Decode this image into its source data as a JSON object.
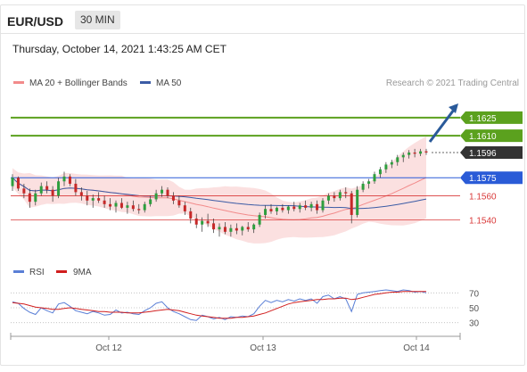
{
  "header": {
    "symbol": "EUR/USD",
    "timeframe": "30 MIN"
  },
  "timestamp": "Thursday, October 14, 2021 1:43:25 AM CET",
  "colors": {
    "up_candle": "#2e9e3e",
    "down_candle": "#c62828",
    "ma20": "#f28b8b",
    "bollinger_fill": "#f7c7c7",
    "ma50": "#3b5ba5",
    "resistance": "#5ba11e",
    "support": "#2a5bd7",
    "minor_level": "#d93a3a",
    "current_price": "#333333",
    "arrow": "#2a5a9a",
    "rsi": "#5a7fd6",
    "rsi_9ma": "#d11e1e"
  },
  "legend": {
    "ma20": "MA 20 + Bollinger Bands",
    "ma50": "MA 50",
    "credit": "Research © 2021 Trading Central"
  },
  "levels": [
    {
      "value": "1.1625",
      "type": "resistance"
    },
    {
      "value": "1.1610",
      "type": "resistance"
    },
    {
      "value": "1.1596",
      "type": "current"
    },
    {
      "value": "1.1575",
      "type": "pivot"
    },
    {
      "value": "1.1560",
      "type": "minor"
    },
    {
      "value": "1.1540",
      "type": "minor"
    }
  ],
  "indicator_legend": {
    "rsi": "RSI",
    "ma9": "9MA"
  },
  "rsi_ticks": [
    "70",
    "50",
    "30"
  ],
  "x_ticks": [
    "Oct 12",
    "Oct 13",
    "Oct 14"
  ],
  "chart_data": {
    "type": "candlestick",
    "price_range": [
      1.1515,
      1.1645
    ],
    "ohlc": [
      [
        1.1568,
        1.1578,
        1.1564,
        1.1575
      ],
      [
        1.1575,
        1.1576,
        1.1564,
        1.1566
      ],
      [
        1.1566,
        1.157,
        1.1558,
        1.1562
      ],
      [
        1.1562,
        1.1566,
        1.155,
        1.1555
      ],
      [
        1.1555,
        1.1565,
        1.1552,
        1.1562
      ],
      [
        1.1562,
        1.1571,
        1.156,
        1.1568
      ],
      [
        1.1568,
        1.1572,
        1.1562,
        1.1565
      ],
      [
        1.1565,
        1.1568,
        1.1555,
        1.156
      ],
      [
        1.156,
        1.1575,
        1.1558,
        1.1572
      ],
      [
        1.1572,
        1.158,
        1.1568,
        1.1576
      ],
      [
        1.1576,
        1.1578,
        1.1568,
        1.157
      ],
      [
        1.157,
        1.1574,
        1.156,
        1.1563
      ],
      [
        1.1563,
        1.1567,
        1.1556,
        1.156
      ],
      [
        1.156,
        1.1564,
        1.1552,
        1.1556
      ],
      [
        1.1556,
        1.1561,
        1.155,
        1.1558
      ],
      [
        1.1558,
        1.1563,
        1.1554,
        1.1556
      ],
      [
        1.1556,
        1.156,
        1.155,
        1.1553
      ],
      [
        1.1553,
        1.1558,
        1.1548,
        1.1551
      ],
      [
        1.1551,
        1.1556,
        1.1546,
        1.1554
      ],
      [
        1.1554,
        1.1558,
        1.1549,
        1.155
      ],
      [
        1.155,
        1.1555,
        1.1545,
        1.1552
      ],
      [
        1.1552,
        1.1556,
        1.1547,
        1.1549
      ],
      [
        1.1549,
        1.1553,
        1.1545,
        1.1548
      ],
      [
        1.1548,
        1.1555,
        1.1546,
        1.1553
      ],
      [
        1.1553,
        1.156,
        1.1551,
        1.1557
      ],
      [
        1.1557,
        1.1565,
        1.1555,
        1.1562
      ],
      [
        1.1562,
        1.1568,
        1.1559,
        1.1565
      ],
      [
        1.1565,
        1.1567,
        1.1558,
        1.156
      ],
      [
        1.156,
        1.1563,
        1.1553,
        1.1556
      ],
      [
        1.1556,
        1.156,
        1.155,
        1.1552
      ],
      [
        1.1552,
        1.1555,
        1.1544,
        1.1547
      ],
      [
        1.1547,
        1.155,
        1.1537,
        1.1541
      ],
      [
        1.1541,
        1.1545,
        1.1533,
        1.1536
      ],
      [
        1.1536,
        1.1542,
        1.153,
        1.1539
      ],
      [
        1.1539,
        1.1545,
        1.1534,
        1.1537
      ],
      [
        1.1537,
        1.1541,
        1.1529,
        1.1532
      ],
      [
        1.1532,
        1.1537,
        1.1526,
        1.1534
      ],
      [
        1.1534,
        1.1538,
        1.1528,
        1.153
      ],
      [
        1.153,
        1.1536,
        1.1526,
        1.1533
      ],
      [
        1.1533,
        1.1537,
        1.1528,
        1.1531
      ],
      [
        1.1531,
        1.1535,
        1.1527,
        1.1534
      ],
      [
        1.1534,
        1.1538,
        1.153,
        1.1532
      ],
      [
        1.1532,
        1.1537,
        1.1529,
        1.1536
      ],
      [
        1.1536,
        1.1546,
        1.1534,
        1.1544
      ],
      [
        1.1544,
        1.1552,
        1.1541,
        1.1549
      ],
      [
        1.1549,
        1.1553,
        1.1545,
        1.1547
      ],
      [
        1.1547,
        1.1551,
        1.1544,
        1.155
      ],
      [
        1.155,
        1.1553,
        1.1546,
        1.1548
      ],
      [
        1.1548,
        1.1552,
        1.1545,
        1.1551
      ],
      [
        1.1551,
        1.1555,
        1.1547,
        1.1549
      ],
      [
        1.1549,
        1.1554,
        1.1546,
        1.1552
      ],
      [
        1.1552,
        1.1556,
        1.1548,
        1.155
      ],
      [
        1.155,
        1.1555,
        1.1547,
        1.1553
      ],
      [
        1.1553,
        1.1556,
        1.1545,
        1.1548
      ],
      [
        1.1548,
        1.1558,
        1.1546,
        1.1556
      ],
      [
        1.1556,
        1.1562,
        1.1553,
        1.156
      ],
      [
        1.156,
        1.1563,
        1.1555,
        1.1558
      ],
      [
        1.1558,
        1.1565,
        1.1556,
        1.1563
      ],
      [
        1.1563,
        1.1567,
        1.1558,
        1.1562
      ],
      [
        1.1562,
        1.1564,
        1.1537,
        1.1544
      ],
      [
        1.1544,
        1.1568,
        1.1542,
        1.1565
      ],
      [
        1.1565,
        1.1572,
        1.1563,
        1.157
      ],
      [
        1.157,
        1.1574,
        1.1566,
        1.1572
      ],
      [
        1.1572,
        1.158,
        1.157,
        1.1578
      ],
      [
        1.1578,
        1.1584,
        1.1575,
        1.1582
      ],
      [
        1.1582,
        1.1588,
        1.1579,
        1.1586
      ],
      [
        1.1586,
        1.159,
        1.1583,
        1.1588
      ],
      [
        1.1588,
        1.1594,
        1.1585,
        1.1592
      ],
      [
        1.1592,
        1.1596,
        1.1588,
        1.1594
      ],
      [
        1.1594,
        1.1598,
        1.1591,
        1.1596
      ],
      [
        1.1596,
        1.1599,
        1.1592,
        1.1595
      ],
      [
        1.1595,
        1.1599,
        1.1593,
        1.1597
      ],
      [
        1.1597,
        1.1599,
        1.1594,
        1.1596
      ]
    ],
    "rsi": [
      58,
      56,
      49,
      44,
      41,
      50,
      46,
      43,
      55,
      57,
      52,
      46,
      44,
      42,
      45,
      43,
      40,
      41,
      47,
      43,
      44,
      42,
      41,
      46,
      50,
      56,
      58,
      50,
      45,
      42,
      38,
      34,
      33,
      40,
      38,
      35,
      37,
      34,
      38,
      37,
      39,
      38,
      42,
      52,
      60,
      57,
      60,
      58,
      61,
      59,
      62,
      60,
      62,
      56,
      65,
      67,
      62,
      65,
      62,
      45,
      68,
      70,
      71,
      72,
      73,
      74,
      73,
      72,
      74,
      73,
      71,
      72,
      70
    ],
    "rsi_9ma": [
      57,
      56,
      55,
      53,
      51,
      50,
      49,
      48,
      48,
      49,
      50,
      49,
      48,
      47,
      46,
      45,
      45,
      44,
      44,
      44,
      43,
      43,
      43,
      44,
      45,
      46,
      47,
      48,
      47,
      46,
      44,
      42,
      40,
      39,
      38,
      37,
      36,
      36,
      36,
      37,
      37,
      38,
      39,
      41,
      43,
      46,
      49,
      52,
      55,
      57,
      58,
      59,
      60,
      61,
      61,
      62,
      62,
      63,
      63,
      61,
      62,
      64,
      66,
      68,
      69,
      70,
      71,
      71,
      72,
      72,
      72,
      72,
      72
    ],
    "x_axis": [
      "Oct 12",
      "Oct 13",
      "Oct 14"
    ]
  }
}
